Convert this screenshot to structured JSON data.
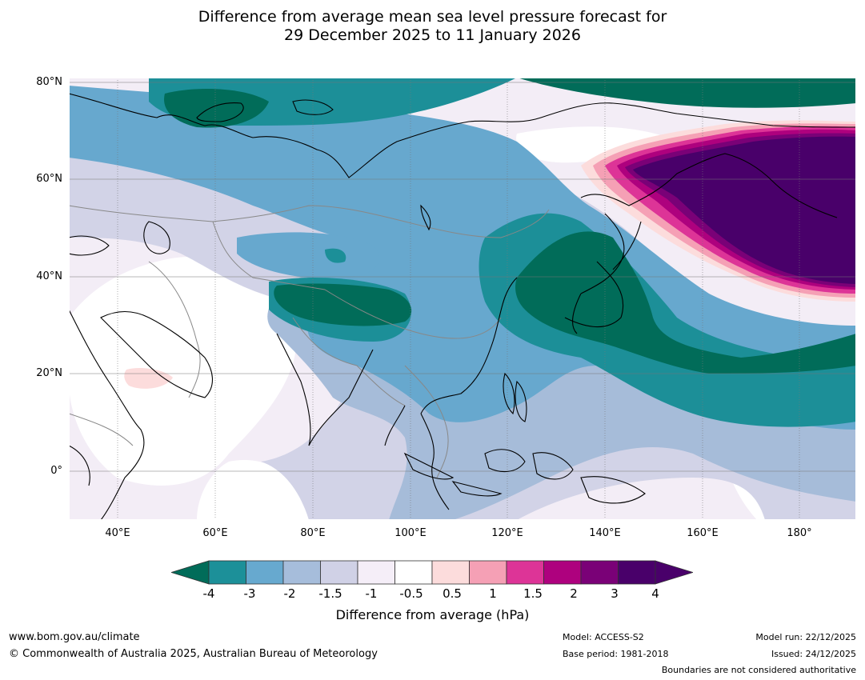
{
  "title": {
    "line1": "Difference from average mean sea level pressure forecast for",
    "line2": "29 December 2025 to 11 January 2026"
  },
  "axes": {
    "lat_labels": [
      "80°N",
      "60°N",
      "40°N",
      "20°N",
      "0°"
    ],
    "lon_labels": [
      "40°E",
      "60°E",
      "80°E",
      "100°E",
      "120°E",
      "140°E",
      "160°E",
      "180°"
    ],
    "lat_values": [
      80,
      60,
      40,
      20,
      0
    ],
    "lon_values": [
      40,
      60,
      80,
      100,
      120,
      140,
      160,
      180
    ],
    "lon_range": [
      30,
      191
    ],
    "lat_range": [
      -10,
      81
    ]
  },
  "colorbar": {
    "tick_labels": [
      "-4",
      "-3",
      "-2",
      "-1.5",
      "-1",
      "-0.5",
      "0.5",
      "1",
      "1.5",
      "2",
      "3",
      "4"
    ],
    "colors": [
      "#1c9099",
      "#67a9cf",
      "#a6bddb",
      "#d0d1e6",
      "#f5eef8",
      "#ffffff",
      "#fcdcdc",
      "#f5a0b5",
      "#dd3497",
      "#ae017e",
      "#7a0177",
      "#49006a"
    ],
    "under_color": "#016c59",
    "over_color": "#49006a",
    "label": "Difference from average (hPa)"
  },
  "footer": {
    "website": "www.bom.gov.au/climate",
    "copyright": "© Commonwealth of Australia 2025, Australian Bureau of Meteorology",
    "model": "Model: ACCESS-S2",
    "base_period": "Base period: 1981-2018",
    "model_run": "Model run: 22/12/2025",
    "issued": "Issued: 24/12/2025",
    "disclaimer": "Boundaries are not considered authoritative"
  }
}
